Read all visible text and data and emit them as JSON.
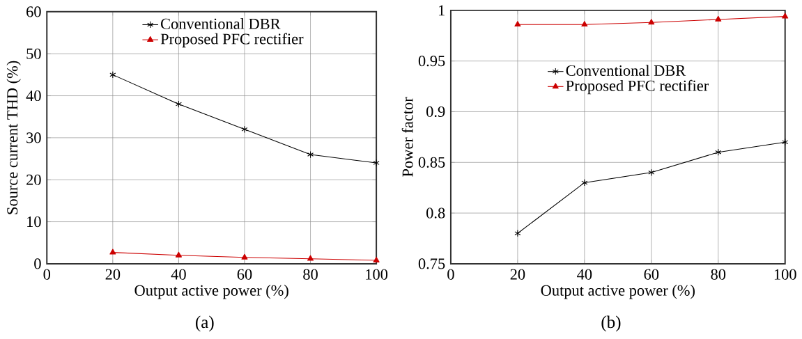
{
  "chart_data": [
    {
      "type": "line",
      "xlabel": "Output active power (%)",
      "ylabel": "Source current THD (%)",
      "x": [
        20,
        40,
        60,
        80,
        100
      ],
      "xlim": [
        0,
        100
      ],
      "xticks": [
        0,
        20,
        40,
        60,
        80,
        100
      ],
      "ylim": [
        0,
        60
      ],
      "yticks": [
        0,
        10,
        20,
        30,
        40,
        50,
        60
      ],
      "grid": true,
      "legend": "top",
      "annotations": [
        "(a)"
      ],
      "series": [
        {
          "name": "Conventional DBR",
          "color": "#000000",
          "marker": "cross",
          "values": [
            45,
            38,
            32,
            26,
            24
          ]
        },
        {
          "name": "Proposed PFC rectifier",
          "color": "#cc0000",
          "marker": "triangle",
          "values": [
            2.7,
            2.0,
            1.5,
            1.2,
            0.8
          ]
        }
      ]
    },
    {
      "type": "line",
      "xlabel": "Output active power (%)",
      "ylabel": "Power factor",
      "x": [
        20,
        40,
        60,
        80,
        100
      ],
      "xlim": [
        0,
        100
      ],
      "xticks": [
        0,
        20,
        40,
        60,
        80,
        100
      ],
      "ylim": [
        0.75,
        1
      ],
      "yticks": [
        0.75,
        0.8,
        0.85,
        0.9,
        0.95,
        1
      ],
      "grid": true,
      "legend": "right",
      "annotations": [
        "(b)"
      ],
      "series": [
        {
          "name": "Conventional DBR",
          "color": "#000000",
          "marker": "cross",
          "values": [
            0.78,
            0.83,
            0.84,
            0.86,
            0.87
          ]
        },
        {
          "name": "Proposed PFC rectifier",
          "color": "#cc0000",
          "marker": "triangle",
          "values": [
            0.986,
            0.986,
            0.988,
            0.991,
            0.994
          ]
        }
      ]
    }
  ]
}
